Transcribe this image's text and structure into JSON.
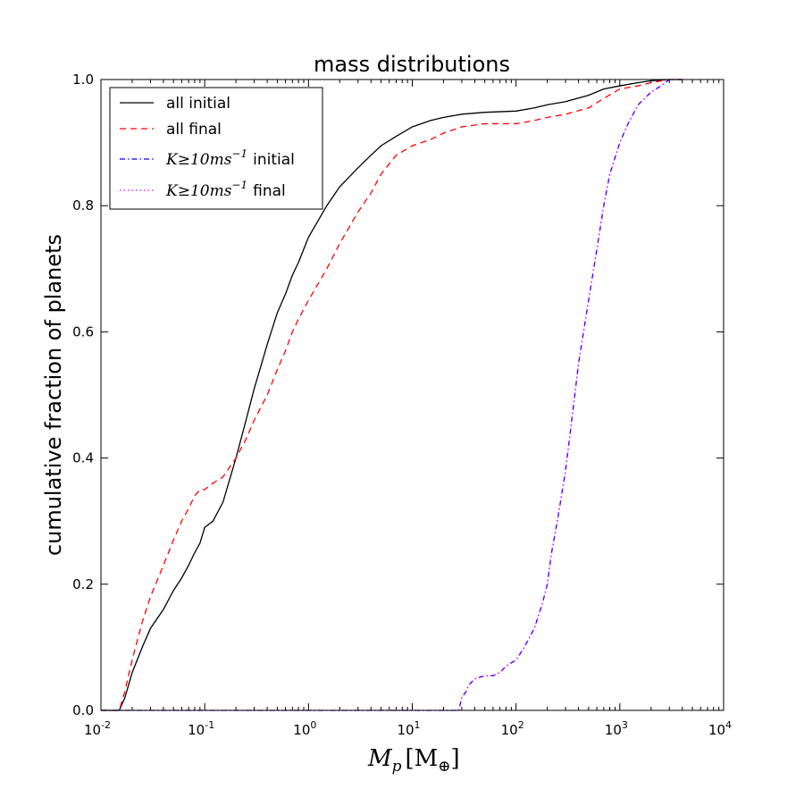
{
  "chart_data": {
    "type": "line",
    "title": "mass distributions",
    "xlabel": "M_p [M_⊕]",
    "xlabel_main": "M",
    "xlabel_sub": "p",
    "xlabel_bracket": "[M",
    "xlabel_sym": "⊕",
    "xlabel_close": "]",
    "ylabel": "cumulative fraction of planets",
    "xscale": "log",
    "xlim": [
      0.01,
      10000
    ],
    "ylim": [
      0.0,
      1.0
    ],
    "x_ticks": [
      {
        "value": 0.01,
        "base": "10",
        "exp": "-2"
      },
      {
        "value": 0.1,
        "base": "10",
        "exp": "-1"
      },
      {
        "value": 1,
        "base": "10",
        "exp": "0"
      },
      {
        "value": 10,
        "base": "10",
        "exp": "1"
      },
      {
        "value": 100,
        "base": "10",
        "exp": "2"
      },
      {
        "value": 1000,
        "base": "10",
        "exp": "3"
      },
      {
        "value": 10000,
        "base": "10",
        "exp": "4"
      }
    ],
    "y_ticks": [
      "0.0",
      "0.2",
      "0.4",
      "0.6",
      "0.8",
      "1.0"
    ],
    "y_tick_values": [
      0.0,
      0.2,
      0.4,
      0.6,
      0.8,
      1.0
    ],
    "legend_position": "upper-left",
    "series": [
      {
        "name": "all initial",
        "label": "all initial",
        "color": "#000000",
        "dash": "",
        "x": [
          0.01,
          0.015,
          0.017,
          0.02,
          0.025,
          0.03,
          0.04,
          0.05,
          0.06,
          0.07,
          0.08,
          0.09,
          0.1,
          0.12,
          0.15,
          0.2,
          0.25,
          0.3,
          0.4,
          0.5,
          0.6,
          0.7,
          0.8,
          1,
          1.5,
          2,
          3,
          4,
          5,
          7,
          10,
          15,
          20,
          30,
          50,
          100,
          150,
          200,
          300,
          500,
          700,
          1000,
          1500,
          2000,
          3000,
          4000
        ],
        "y": [
          0.0,
          0.0,
          0.02,
          0.06,
          0.1,
          0.13,
          0.16,
          0.19,
          0.21,
          0.23,
          0.25,
          0.265,
          0.29,
          0.3,
          0.33,
          0.4,
          0.46,
          0.51,
          0.58,
          0.63,
          0.66,
          0.69,
          0.71,
          0.75,
          0.8,
          0.83,
          0.86,
          0.88,
          0.895,
          0.91,
          0.925,
          0.935,
          0.94,
          0.945,
          0.948,
          0.95,
          0.955,
          0.96,
          0.965,
          0.975,
          0.985,
          0.99,
          0.995,
          0.998,
          1.0,
          1.0
        ]
      },
      {
        "name": "all final",
        "label": "all final",
        "color": "#ff0000",
        "dash": "7,5",
        "x": [
          0.01,
          0.015,
          0.017,
          0.02,
          0.025,
          0.03,
          0.04,
          0.05,
          0.06,
          0.07,
          0.08,
          0.09,
          0.1,
          0.12,
          0.15,
          0.2,
          0.25,
          0.3,
          0.4,
          0.5,
          0.6,
          0.7,
          0.8,
          1,
          1.5,
          2,
          3,
          4,
          5,
          7,
          10,
          15,
          20,
          30,
          50,
          100,
          150,
          200,
          300,
          500,
          700,
          1000,
          1500,
          2000,
          3000,
          4000
        ],
        "y": [
          0.0,
          0.0,
          0.03,
          0.08,
          0.14,
          0.18,
          0.23,
          0.27,
          0.3,
          0.32,
          0.34,
          0.35,
          0.35,
          0.36,
          0.37,
          0.4,
          0.43,
          0.46,
          0.5,
          0.54,
          0.57,
          0.6,
          0.62,
          0.65,
          0.7,
          0.74,
          0.79,
          0.82,
          0.85,
          0.88,
          0.895,
          0.905,
          0.915,
          0.925,
          0.93,
          0.93,
          0.935,
          0.94,
          0.945,
          0.955,
          0.97,
          0.985,
          0.99,
          0.995,
          1.0,
          1.0
        ]
      },
      {
        "name": "K≥10ms⁻¹ initial",
        "label_math": "K≥10ms",
        "label_exp": "−1",
        "label_suffix": "initial",
        "color": "#0000ff",
        "dash": "6,3,1.5,3",
        "x": [
          0.01,
          10,
          25,
          28,
          30,
          33,
          35,
          40,
          50,
          60,
          70,
          80,
          100,
          120,
          150,
          180,
          200,
          220,
          250,
          300,
          350,
          400,
          500,
          600,
          700,
          800,
          1000,
          1200,
          1500,
          2000,
          2500,
          3000,
          4000
        ],
        "y": [
          0.0,
          0.0,
          0.0,
          0.0,
          0.02,
          0.03,
          0.04,
          0.05,
          0.055,
          0.055,
          0.06,
          0.07,
          0.08,
          0.1,
          0.13,
          0.17,
          0.2,
          0.25,
          0.3,
          0.38,
          0.47,
          0.55,
          0.65,
          0.73,
          0.8,
          0.85,
          0.9,
          0.93,
          0.96,
          0.98,
          0.99,
          1.0,
          1.0
        ]
      },
      {
        "name": "K≥10ms⁻¹ final",
        "label_math": "K≥10ms",
        "label_exp": "−1",
        "label_suffix": "final",
        "color": "#ff00ff",
        "dash": "1.5,3",
        "x": [
          0.01,
          10,
          25,
          28,
          30,
          33,
          35,
          40,
          50,
          60,
          70,
          80,
          100,
          120,
          150,
          180,
          200,
          220,
          250,
          300,
          350,
          400,
          500,
          600,
          700,
          800,
          1000,
          1200,
          1500,
          2000,
          2500,
          3000,
          4000
        ],
        "y": [
          0.0,
          0.0,
          0.0,
          0.0,
          0.02,
          0.03,
          0.04,
          0.05,
          0.055,
          0.055,
          0.06,
          0.07,
          0.08,
          0.1,
          0.13,
          0.17,
          0.2,
          0.25,
          0.3,
          0.38,
          0.47,
          0.55,
          0.65,
          0.73,
          0.8,
          0.85,
          0.9,
          0.93,
          0.96,
          0.98,
          0.99,
          1.0,
          1.0
        ]
      }
    ]
  }
}
